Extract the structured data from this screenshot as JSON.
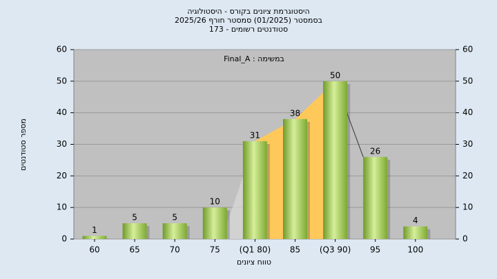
{
  "chart_data": {
    "type": "bar",
    "title": "היסטוגרמת ציונים בקורס - היסטולוגיה",
    "subtitle": "בסמסטר (01/2025) סמסטר חורף 2025/26",
    "subtitle2": "סטודנטים רשומים - 173",
    "annotation": "במשימה : Final_A",
    "x_label": "טווח ציונים",
    "y_label": "מספר סטודנטים",
    "categories": [
      "60",
      "65",
      "70",
      "75",
      "(Q1 80)",
      "85",
      "(Q3 90)",
      "95",
      "100"
    ],
    "values": [
      1,
      5,
      5,
      10,
      31,
      38,
      50,
      26,
      4
    ],
    "color": "#9acd4a",
    "ylim": [
      0,
      60
    ],
    "yticks": [
      0,
      10,
      20,
      30,
      40,
      50,
      60
    ],
    "y2lim": [
      0,
      60
    ],
    "y2ticks": [
      0,
      10,
      20,
      30,
      40,
      50,
      60
    ],
    "grid": true
  }
}
